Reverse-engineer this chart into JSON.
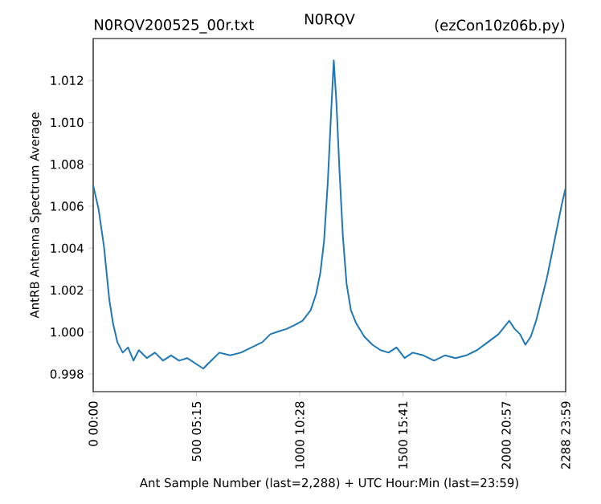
{
  "chart_data": {
    "type": "line",
    "title": "N0RQV",
    "annotations": [
      "N0RQV200525_00r.txt",
      "(ezCon10z06b.py)"
    ],
    "xlabel": "Ant Sample Number (last=2,288) + UTC Hour:Min (last=23:59)",
    "ylabel": "AntRB Antenna Spectrum Average",
    "xlim": [
      0,
      2288
    ],
    "ylim": [
      0.99716,
      1.014
    ],
    "xticks": [
      0,
      500,
      1000,
      1500,
      2000,
      2288
    ],
    "x2lim": [
      0,
      23.983
    ],
    "x2ticks": [
      {
        "value": 0,
        "label": "00:00"
      },
      {
        "value": 5.25,
        "label": "05:15"
      },
      {
        "value": 10.467,
        "label": "10:28"
      },
      {
        "value": 15.683,
        "label": "15:41"
      },
      {
        "value": 20.95,
        "label": "20:57"
      },
      {
        "value": 23.983,
        "label": "23:59"
      }
    ],
    "yticks": [
      {
        "value": 0.998,
        "label": "0.998"
      },
      {
        "value": 1.0,
        "label": "1.000"
      },
      {
        "value": 1.002,
        "label": "1.002"
      },
      {
        "value": 1.004,
        "label": "1.004"
      },
      {
        "value": 1.006,
        "label": "1.006"
      },
      {
        "value": 1.008,
        "label": "1.008"
      },
      {
        "value": 1.01,
        "label": "1.010"
      },
      {
        "value": 1.012,
        "label": "1.012"
      }
    ],
    "x": [
      0,
      26,
      52,
      78,
      96,
      117,
      143,
      169,
      195,
      221,
      260,
      299,
      338,
      377,
      416,
      455,
      494,
      533,
      572,
      611,
      663,
      715,
      767,
      819,
      858,
      897,
      936,
      975,
      1014,
      1053,
      1079,
      1100,
      1118,
      1136,
      1152,
      1165,
      1178,
      1193,
      1209,
      1227,
      1248,
      1274,
      1313,
      1352,
      1391,
      1430,
      1469,
      1508,
      1547,
      1599,
      1651,
      1703,
      1755,
      1807,
      1859,
      1911,
      1963,
      2015,
      2041,
      2067,
      2093,
      2119,
      2145,
      2171,
      2197,
      2223,
      2249,
      2270,
      2288
    ],
    "series": [
      {
        "color": "#1f77b4",
        "values": [
          1.007,
          1.00586,
          1.00409,
          1.00155,
          1.00041,
          0.99952,
          0.99902,
          0.99927,
          0.99864,
          0.99914,
          0.99876,
          0.99902,
          0.99864,
          0.99889,
          0.99864,
          0.99876,
          0.99851,
          0.99826,
          0.99864,
          0.99902,
          0.99889,
          0.99902,
          0.99927,
          0.99952,
          0.9999,
          1.00003,
          1.00015,
          1.00033,
          1.00054,
          1.00104,
          1.0018,
          1.00282,
          1.00434,
          1.00713,
          1.01043,
          1.01296,
          1.01093,
          1.00764,
          1.00459,
          1.00231,
          1.00104,
          1.00041,
          0.99978,
          0.9994,
          0.99914,
          0.99902,
          0.99927,
          0.99876,
          0.99902,
          0.99889,
          0.99864,
          0.99889,
          0.99876,
          0.99889,
          0.99914,
          0.99952,
          0.9999,
          1.00054,
          1.00015,
          0.9999,
          0.9994,
          0.99978,
          1.00054,
          1.00155,
          1.00257,
          1.00383,
          1.0051,
          1.00612,
          1.00688
        ]
      }
    ]
  }
}
